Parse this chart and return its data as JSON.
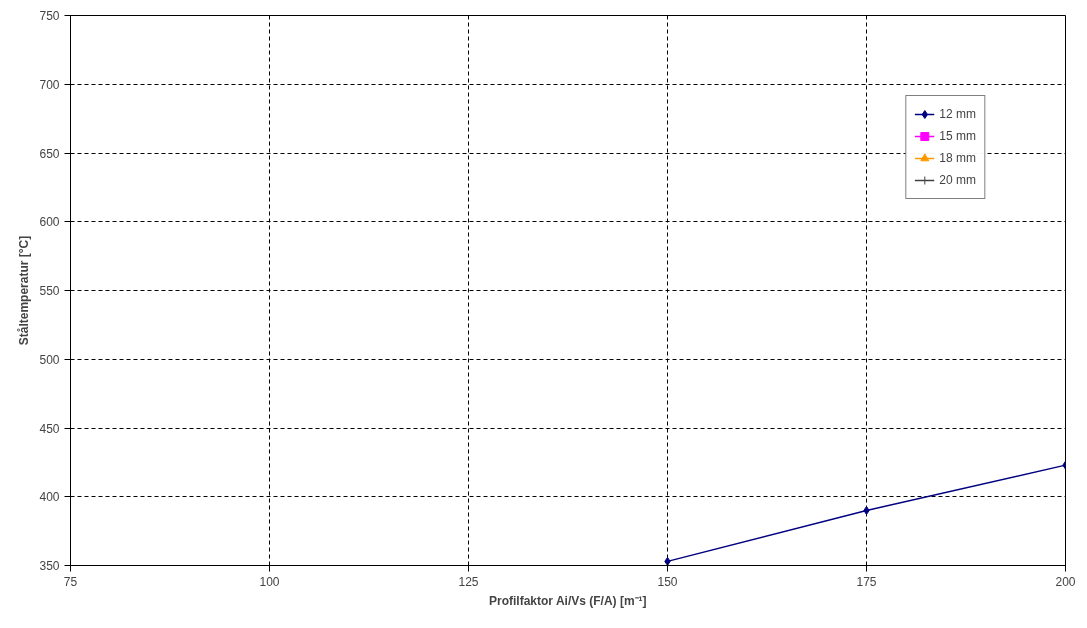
{
  "chart_data": {
    "type": "line",
    "xlabel": "Profilfaktor Ai/Vs (F/A) [m⁻¹]",
    "ylabel": "Ståltemperatur [°C]",
    "x": [
      150,
      175,
      200
    ],
    "series": [
      {
        "name": "12 mm",
        "color": "#000080",
        "marker": "diamond",
        "values": [
          353,
          390,
          423
        ]
      },
      {
        "name": "15 mm",
        "color": "#ff00ff",
        "marker": "square",
        "values": [
          null,
          null,
          null
        ]
      },
      {
        "name": "18 mm",
        "color": "#ff9900",
        "marker": "triangle",
        "values": [
          null,
          null,
          null
        ]
      },
      {
        "name": "20 mm",
        "color": "#404040",
        "marker": "cross",
        "values": [
          null,
          null,
          null
        ]
      }
    ],
    "xlim": [
      75,
      200
    ],
    "xticks": [
      75,
      100,
      125,
      150,
      175,
      200
    ],
    "ylim": [
      350,
      750
    ],
    "yticks": [
      350,
      400,
      450,
      500,
      550,
      600,
      650,
      700,
      750
    ],
    "grid": true,
    "legend": "top right",
    "line_style": "solid"
  }
}
